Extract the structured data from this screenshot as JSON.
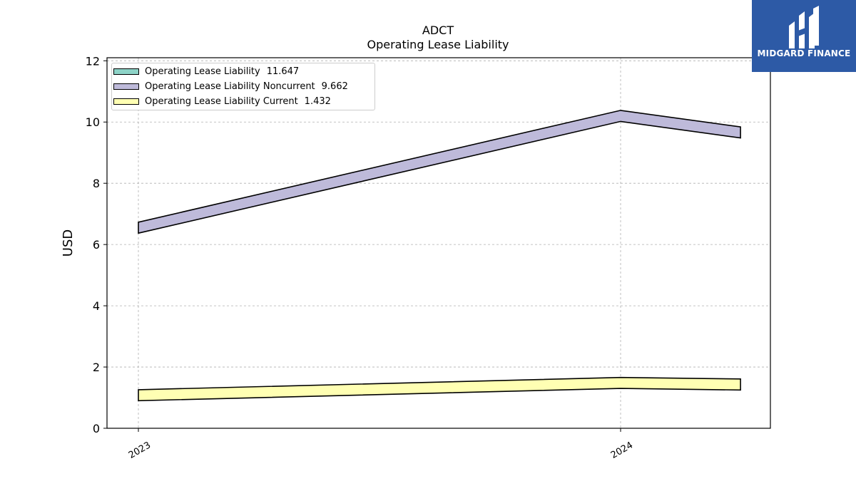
{
  "chart_data": {
    "type": "area",
    "title": "ADCT",
    "subtitle": "Operating Lease Liability",
    "xlabel": "",
    "ylabel": "USD",
    "x": [
      "2023-03-31",
      "2024-03-31",
      "2024-06-30"
    ],
    "x_tick_labels": [
      {
        "value": "2023-03-31",
        "label": "2023"
      },
      {
        "value": "2024-03-31",
        "label": "2024"
      }
    ],
    "ylim": [
      0,
      12.1
    ],
    "y_ticks": [
      0,
      2,
      4,
      6,
      8,
      10,
      12
    ],
    "grid": true,
    "legend_position": "top-left",
    "series": [
      {
        "name": "Operating Lease Liability",
        "legend_value": "11.647",
        "color": "#8dd3c7",
        "values": [
          null,
          null,
          null
        ]
      },
      {
        "name": "Operating Lease Liability Noncurrent",
        "legend_value": "9.662",
        "color": "#bebada",
        "values": [
          6.55,
          10.2,
          9.66
        ]
      },
      {
        "name": "Operating Lease Liability Current",
        "legend_value": "1.432",
        "color": "#ffffb3",
        "values": [
          1.08,
          1.48,
          1.43
        ]
      }
    ]
  },
  "logo": {
    "text": "MIDGARD FINANCE"
  }
}
